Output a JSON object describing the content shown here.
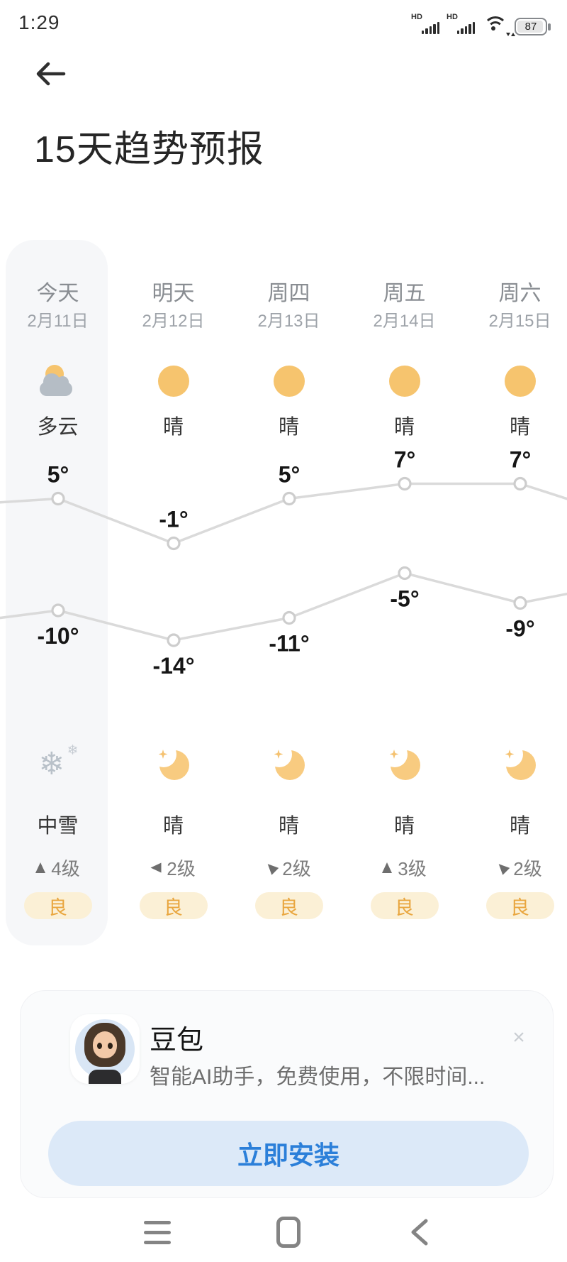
{
  "status_bar": {
    "time": "1:29",
    "sim1_label": "HD",
    "sim2_label": "HD",
    "battery_percent": "87"
  },
  "header": {
    "title": "15天趋势预报"
  },
  "forecast": {
    "days": [
      {
        "name": "今天",
        "date": "2月11日",
        "day_cond": "多云",
        "day_icon": "partly-cloudy",
        "night_cond": "中雪",
        "night_icon": "snow",
        "wind_level": "4级",
        "wind_dir_deg": 0,
        "aqi": "良",
        "today": true
      },
      {
        "name": "明天",
        "date": "2月12日",
        "day_cond": "晴",
        "day_icon": "sun",
        "night_cond": "晴",
        "night_icon": "moon",
        "wind_level": "2级",
        "wind_dir_deg": 270,
        "aqi": "良",
        "today": false
      },
      {
        "name": "周四",
        "date": "2月13日",
        "day_cond": "晴",
        "day_icon": "sun",
        "night_cond": "晴",
        "night_icon": "moon",
        "wind_level": "2级",
        "wind_dir_deg": 315,
        "aqi": "良",
        "today": false
      },
      {
        "name": "周五",
        "date": "2月14日",
        "day_cond": "晴",
        "day_icon": "sun",
        "night_cond": "晴",
        "night_icon": "moon",
        "wind_level": "3级",
        "wind_dir_deg": 0,
        "aqi": "良",
        "today": false
      },
      {
        "name": "周六",
        "date": "2月15日",
        "day_cond": "晴",
        "day_icon": "sun",
        "night_cond": "晴",
        "night_icon": "moon",
        "wind_level": "2级",
        "wind_dir_deg": 315,
        "aqi": "良",
        "today": false
      }
    ]
  },
  "chart_data": {
    "type": "line",
    "x_categories": [
      "今天",
      "明天",
      "周四",
      "周五",
      "周六"
    ],
    "series": [
      {
        "name": "day_high",
        "values": [
          5,
          -1,
          5,
          7,
          7
        ]
      },
      {
        "name": "night_low",
        "values": [
          -10,
          -14,
          -11,
          -5,
          -9
        ]
      }
    ],
    "unit": "°",
    "offscreen_trend": {
      "prev_high": 4,
      "prev_low": -12,
      "next_high": 2,
      "next_low": -6
    },
    "grid": false,
    "labels_visible": true
  },
  "ad": {
    "title": "豆包",
    "description": "智能AI助手，免费使用，不限时间...",
    "install_label": "立即安装",
    "close_icon": "×"
  },
  "icons": {
    "snow_main": "❄",
    "snow_small": "❄"
  },
  "colors": {
    "sun": "#f6c46e",
    "moon": "#f8cb80",
    "cloud": "#b5bdc5",
    "snowflake": "#b9c1c9",
    "chart_line": "#dadada",
    "marker_stroke": "#cdcdcd",
    "temp_text": "#161616",
    "aqi_bg": "#fbf0d6",
    "aqi_text": "#e9a63f",
    "today_highlight": "#f6f7f9",
    "install_bg": "#dce9f8",
    "install_text": "#2b7fd9"
  }
}
